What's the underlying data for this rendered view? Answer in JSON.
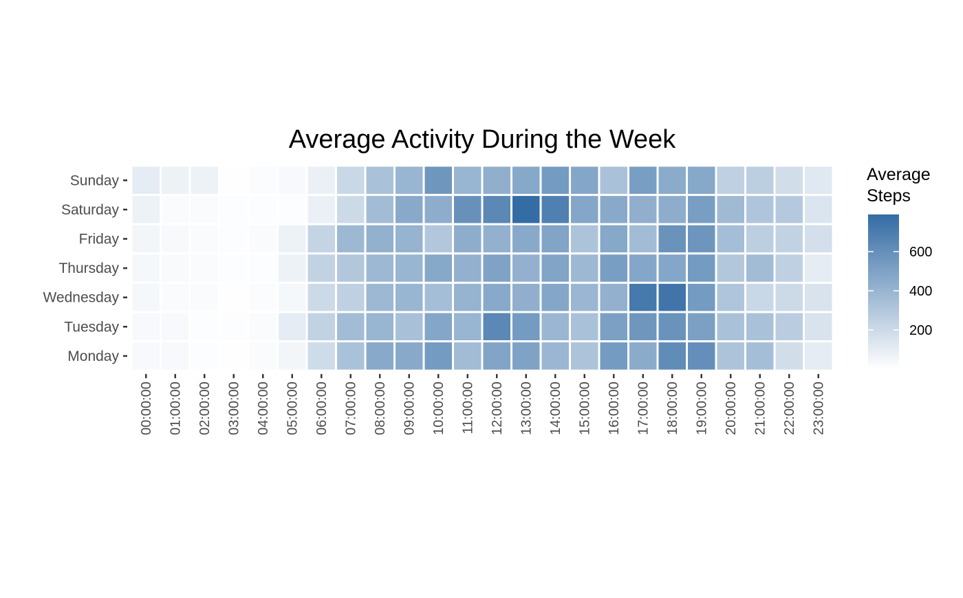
{
  "chart_data": {
    "type": "heatmap",
    "title": "Average Activity During the Week",
    "xlabel": "",
    "ylabel": "",
    "x_categories": [
      "00:00:00",
      "01:00:00",
      "02:00:00",
      "03:00:00",
      "04:00:00",
      "05:00:00",
      "06:00:00",
      "07:00:00",
      "08:00:00",
      "09:00:00",
      "10:00:00",
      "11:00:00",
      "12:00:00",
      "13:00:00",
      "14:00:00",
      "15:00:00",
      "16:00:00",
      "17:00:00",
      "18:00:00",
      "19:00:00",
      "20:00:00",
      "21:00:00",
      "22:00:00",
      "23:00:00"
    ],
    "y_categories": [
      "Sunday",
      "Saturday",
      "Friday",
      "Thursday",
      "Wednesday",
      "Tuesday",
      "Monday"
    ],
    "values": [
      [
        100,
        70,
        70,
        5,
        15,
        30,
        80,
        210,
        330,
        400,
        560,
        400,
        430,
        470,
        540,
        480,
        330,
        520,
        450,
        470,
        250,
        260,
        180,
        120
      ],
      [
        70,
        20,
        20,
        10,
        10,
        10,
        80,
        200,
        360,
        460,
        440,
        590,
        640,
        790,
        680,
        480,
        460,
        430,
        440,
        520,
        370,
        310,
        290,
        140
      ],
      [
        50,
        30,
        20,
        10,
        20,
        70,
        230,
        380,
        420,
        410,
        300,
        440,
        420,
        460,
        490,
        320,
        470,
        360,
        580,
        570,
        350,
        260,
        240,
        170
      ],
      [
        40,
        25,
        20,
        10,
        10,
        70,
        240,
        300,
        380,
        400,
        470,
        420,
        500,
        420,
        490,
        380,
        520,
        480,
        480,
        540,
        300,
        360,
        250,
        100
      ],
      [
        40,
        20,
        20,
        5,
        15,
        40,
        200,
        250,
        380,
        400,
        350,
        410,
        460,
        430,
        480,
        390,
        420,
        720,
        740,
        540,
        310,
        210,
        200,
        150
      ],
      [
        30,
        30,
        10,
        10,
        20,
        100,
        240,
        360,
        400,
        340,
        480,
        400,
        640,
        540,
        390,
        330,
        510,
        560,
        580,
        510,
        330,
        330,
        270,
        150
      ],
      [
        30,
        30,
        10,
        5,
        20,
        50,
        190,
        330,
        460,
        460,
        540,
        360,
        490,
        500,
        390,
        320,
        540,
        450,
        620,
        600,
        320,
        350,
        180,
        100
      ]
    ],
    "colorbar": {
      "title_lines": [
        "Average",
        "Steps"
      ],
      "ticks": [
        200,
        400,
        600
      ],
      "min": 0,
      "max": 790,
      "low_color": "#ffffff",
      "high_color": "#346ca4"
    },
    "grid": false,
    "legend": "right"
  }
}
